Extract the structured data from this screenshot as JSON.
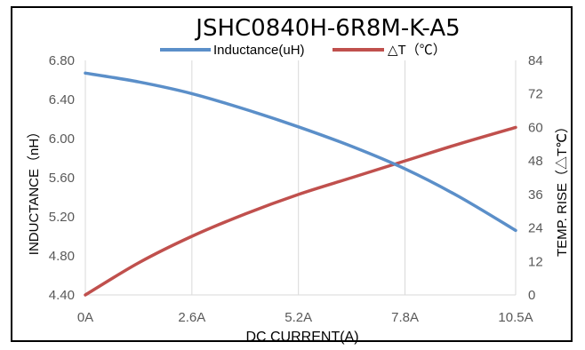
{
  "chart_data": {
    "type": "line",
    "title": "JSHC0840H-6R8M-K-A5",
    "xlabel": "DC  CURRENT(A)",
    "ylabel": "INDUCTANCE（nH）",
    "y2label": "TEMP. RISE（△T℃）",
    "x_tick_labels": [
      "0A",
      "2.6A",
      "5.2A",
      "7.8A",
      "10.5A"
    ],
    "x_ticks": [
      0,
      2.6,
      5.2,
      7.8,
      10.5
    ],
    "xlim": [
      0,
      10.5
    ],
    "y_tick_labels": [
      "4.40",
      "4.80",
      "5.20",
      "5.60",
      "6.00",
      "6.40",
      "6.80"
    ],
    "ylim": [
      4.4,
      6.8
    ],
    "y2_tick_labels": [
      "0",
      "12",
      "24",
      "36",
      "48",
      "60",
      "72",
      "84"
    ],
    "y2lim": [
      0,
      84
    ],
    "grid": "vertical",
    "legend_position": "top",
    "series": [
      {
        "name": "Inductance(uH)",
        "axis": "left",
        "color": "#5b8fc9",
        "x": [
          0,
          1.3,
          2.6,
          3.9,
          5.2,
          6.5,
          7.8,
          9.1,
          10.5
        ],
        "y": [
          6.67,
          6.58,
          6.46,
          6.3,
          6.12,
          5.92,
          5.69,
          5.41,
          5.06
        ]
      },
      {
        "name": "△T（℃）",
        "axis": "right",
        "color": "#c0504d",
        "x": [
          0,
          1.3,
          2.6,
          3.9,
          5.2,
          6.5,
          7.8,
          9.1,
          10.5
        ],
        "y": [
          0,
          11.5,
          21,
          29,
          36,
          42,
          48,
          54,
          60
        ]
      }
    ]
  }
}
